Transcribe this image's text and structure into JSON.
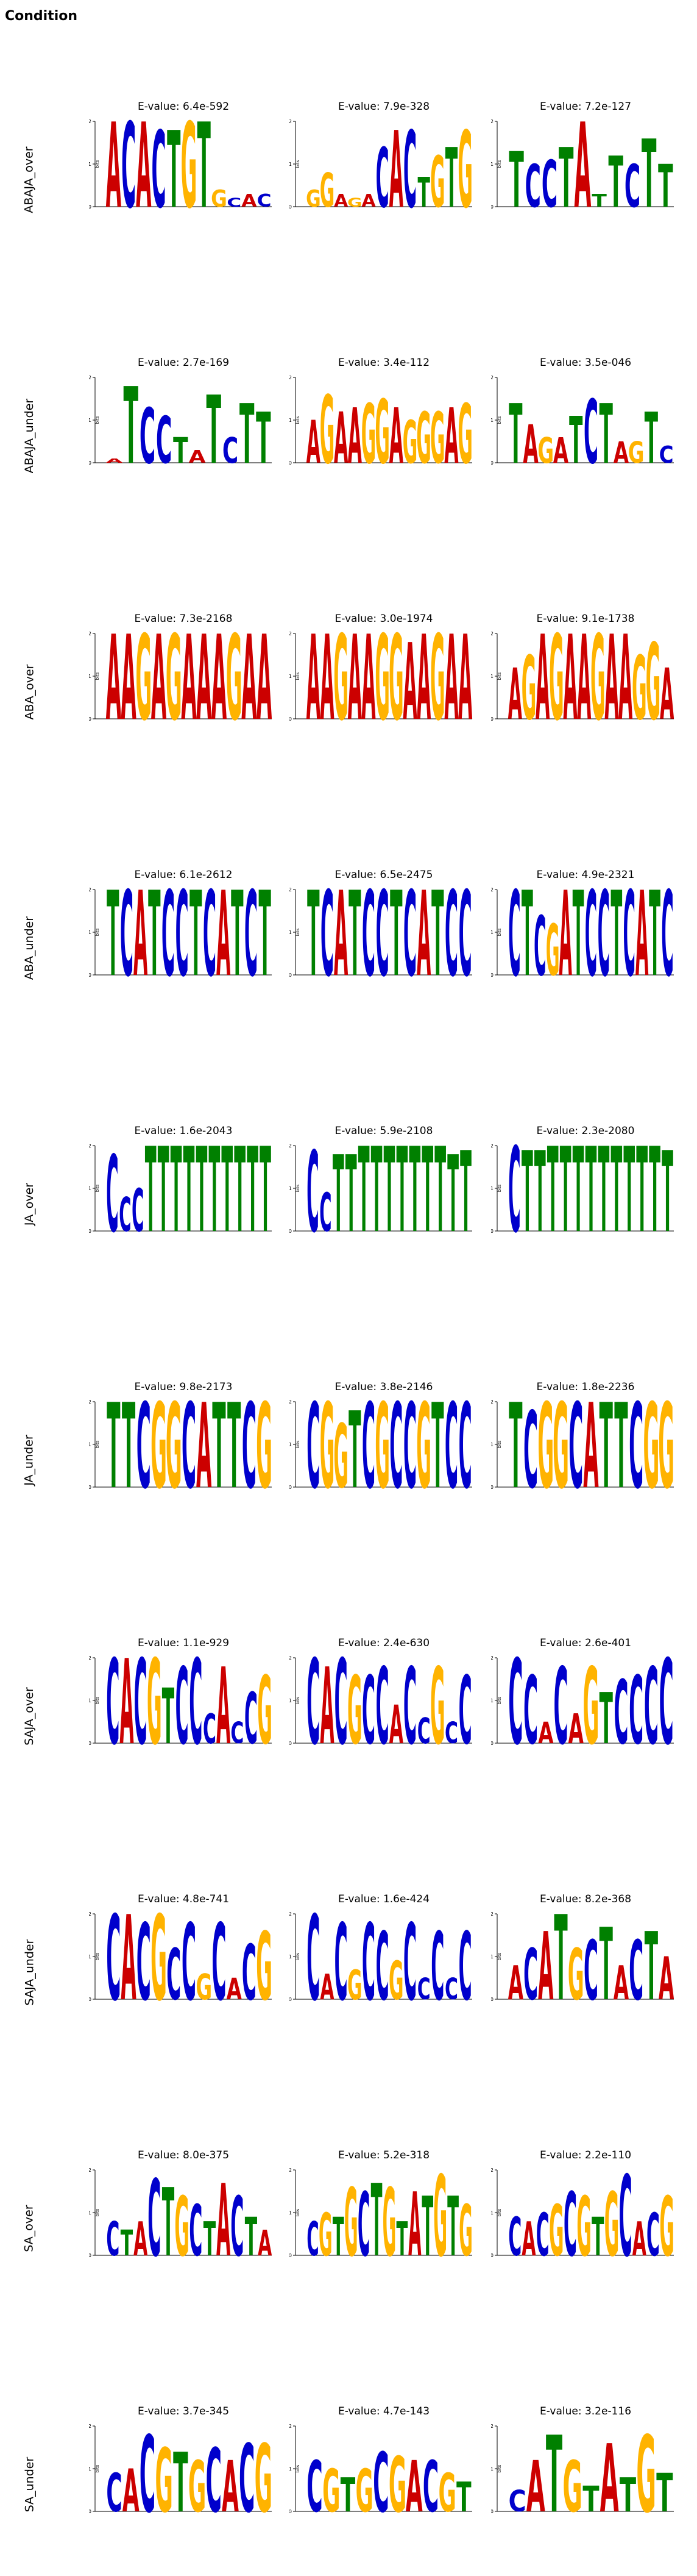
{
  "title": "Condition",
  "axis_label": "bits",
  "colors": {
    "A": "#cc0000",
    "C": "#0000cc",
    "G": "#ffb300",
    "T": "#008000"
  },
  "rows": [
    {
      "label": "ABAJA_over",
      "panels": [
        {
          "evalue": "E-value: 6.4e-592",
          "consensus": "ACACTGTGCAC",
          "heights": [
            2,
            2,
            2,
            1.8,
            1.8,
            2,
            2,
            0.4,
            0.2,
            0.3,
            0.3
          ]
        },
        {
          "evalue": "E-value: 7.9e-328",
          "consensus": "GGAGACACTGTG",
          "heights": [
            0.4,
            0.8,
            0.3,
            0.2,
            0.3,
            1.4,
            1.8,
            1.8,
            0.7,
            1.2,
            1.4,
            1.8
          ]
        },
        {
          "evalue": "E-value: 7.2e-127",
          "consensus": "TCCTATTCTT",
          "heights": [
            1.3,
            1.0,
            1.1,
            1.4,
            2.0,
            0.3,
            1.2,
            1.0,
            1.6,
            1.0
          ]
        }
      ]
    },
    {
      "label": "ABAJA_under",
      "panels": [
        {
          "evalue": "E-value: 2.7e-169",
          "consensus": "ATCCTATCTT",
          "heights": [
            0.1,
            1.8,
            1.3,
            1.1,
            0.6,
            0.3,
            1.6,
            0.6,
            1.4,
            1.2
          ]
        },
        {
          "evalue": "E-value: 3.4e-112",
          "consensus": "AGAAGGAGGGAG",
          "heights": [
            1.0,
            1.6,
            1.2,
            1.3,
            1.4,
            1.5,
            1.3,
            1.0,
            1.2,
            1.2,
            1.3,
            1.4
          ]
        },
        {
          "evalue": "E-value: 3.5e-046",
          "consensus": "TAGATCTAGTC",
          "heights": [
            1.4,
            0.9,
            0.6,
            0.6,
            1.1,
            1.5,
            1.4,
            0.5,
            0.5,
            1.2,
            0.4
          ]
        }
      ]
    },
    {
      "label": "ABA_over",
      "panels": [
        {
          "evalue": "E-value: 7.3e-2168",
          "consensus": "AAGAGAAAGAA",
          "heights": [
            2,
            2,
            2,
            2,
            2,
            2,
            2,
            2,
            2,
            2,
            2
          ]
        },
        {
          "evalue": "E-value: 3.0e-1974",
          "consensus": "AAGAAGGAAGAA",
          "heights": [
            2,
            2,
            2,
            2,
            2,
            2,
            2,
            1.8,
            2,
            2,
            2,
            2
          ]
        },
        {
          "evalue": "E-value: 9.1e-1738",
          "consensus": "AGAGAAGAAGGA",
          "heights": [
            1.2,
            1.5,
            2,
            2,
            2,
            2,
            2,
            2,
            2,
            1.5,
            1.8,
            1.2
          ]
        }
      ]
    },
    {
      "label": "ABA_under",
      "panels": [
        {
          "evalue": "E-value: 6.1e-2612",
          "consensus": "TCATCCTCATCT",
          "heights": [
            2,
            2,
            2,
            2,
            2,
            2,
            2,
            2,
            2,
            2,
            2,
            2
          ]
        },
        {
          "evalue": "E-value: 6.5e-2475",
          "consensus": "TCATCCTCATCC",
          "heights": [
            2,
            2,
            2,
            2,
            2,
            2,
            2,
            2,
            2,
            2,
            2,
            2
          ]
        },
        {
          "evalue": "E-value: 4.9e-2321",
          "consensus": "CTCGATCCTCATC",
          "heights": [
            2,
            2,
            1.4,
            1.2,
            2,
            2,
            2,
            2,
            2,
            2,
            2,
            2,
            2
          ]
        }
      ]
    },
    {
      "label": "JA_over",
      "panels": [
        {
          "evalue": "E-value: 1.6e-2043",
          "consensus": "CCCTTTTTTTTTT",
          "heights": [
            1.8,
            0.8,
            1.0,
            2,
            2,
            2,
            2,
            2,
            2,
            2,
            2,
            2,
            2
          ]
        },
        {
          "evalue": "E-value: 5.9e-2108",
          "consensus": "CCTTTTTTTTTTT",
          "heights": [
            1.9,
            0.9,
            1.8,
            1.8,
            2,
            2,
            2,
            2,
            2,
            2,
            2,
            1.8,
            1.9
          ]
        },
        {
          "evalue": "E-value: 2.3e-2080",
          "consensus": "CTTTTTTTTTTTT",
          "heights": [
            2,
            1.9,
            1.9,
            2,
            2,
            2,
            2,
            2,
            2,
            2,
            2,
            2,
            1.9
          ]
        }
      ]
    },
    {
      "label": "JA_under",
      "panels": [
        {
          "evalue": "E-value: 9.8e-2173",
          "consensus": "TTCGGCATTCG",
          "heights": [
            2,
            2,
            2,
            2,
            2,
            2,
            2,
            2,
            2,
            2,
            2
          ]
        },
        {
          "evalue": "E-value: 3.8e-2146",
          "consensus": "CGGTCGCCGTCC",
          "heights": [
            2,
            2,
            1.5,
            1.8,
            2,
            2,
            2,
            2,
            2,
            2,
            2,
            2
          ]
        },
        {
          "evalue": "E-value: 1.8e-2236",
          "consensus": "TCGGCATTCGG",
          "heights": [
            2,
            1.8,
            2,
            2,
            2,
            2,
            2,
            2,
            2,
            2,
            2
          ]
        }
      ]
    },
    {
      "label": "SAJA_over",
      "panels": [
        {
          "evalue": "E-value: 1.1e-929",
          "consensus": "CACGTCCCACCG",
          "heights": [
            2,
            2,
            2,
            2,
            1.3,
            1.8,
            2,
            0.7,
            1.8,
            0.5,
            1.2,
            1.6
          ]
        },
        {
          "evalue": "E-value: 2.4e-630",
          "consensus": "CACGCCACCGCC",
          "heights": [
            2,
            1.8,
            2,
            1.6,
            1.6,
            1.8,
            0.9,
            1.8,
            0.6,
            1.8,
            0.5,
            1.6
          ]
        },
        {
          "evalue": "E-value: 2.6e-401",
          "consensus": "CCACAGTCCCC",
          "heights": [
            2,
            1.6,
            0.5,
            1.8,
            0.7,
            1.8,
            1.2,
            1.5,
            1.6,
            1.8,
            2
          ]
        }
      ]
    },
    {
      "label": "SAJA_under",
      "panels": [
        {
          "evalue": "E-value: 4.8e-741",
          "consensus": "CACGCCGCACG",
          "heights": [
            2,
            2,
            1.8,
            2,
            1.2,
            1.8,
            0.6,
            1.8,
            0.5,
            1.3,
            1.6
          ]
        },
        {
          "evalue": "E-value: 1.6e-424",
          "consensus": "CACGCCGCCCCC",
          "heights": [
            2,
            0.6,
            1.8,
            0.7,
            1.8,
            1.6,
            0.9,
            1.8,
            0.5,
            1.6,
            0.5,
            1.6
          ]
        },
        {
          "evalue": "E-value: 8.2e-368",
          "consensus": "ACATGCTACTA",
          "heights": [
            0.8,
            1.2,
            1.6,
            2.0,
            1.2,
            1.4,
            1.7,
            0.8,
            1.4,
            1.6,
            1.0
          ]
        }
      ]
    },
    {
      "label": "SA_over",
      "panels": [
        {
          "evalue": "E-value: 8.0e-375",
          "consensus": "CTACTGCTACTA",
          "heights": [
            0.8,
            0.6,
            0.8,
            1.8,
            1.6,
            1.4,
            1.2,
            0.8,
            1.7,
            1.4,
            0.9,
            0.6
          ]
        },
        {
          "evalue": "E-value: 5.2e-318",
          "consensus": "CGTGCTGTATGTG",
          "heights": [
            0.8,
            1.0,
            0.9,
            1.6,
            1.5,
            1.7,
            1.6,
            0.8,
            1.5,
            1.4,
            1.9,
            1.4,
            1.2
          ]
        },
        {
          "evalue": "E-value: 2.2e-110",
          "consensus": "CACGCGTGCACG",
          "heights": [
            0.9,
            0.8,
            1.0,
            1.2,
            1.5,
            1.4,
            0.9,
            1.5,
            1.9,
            0.8,
            1.0,
            1.4
          ]
        }
      ]
    },
    {
      "label": "SA_under",
      "panels": [
        {
          "evalue": "E-value: 3.7e-345",
          "consensus": "CACGTGCACG",
          "heights": [
            0.9,
            1.0,
            1.8,
            1.5,
            1.4,
            1.2,
            1.5,
            1.2,
            1.6,
            1.6
          ]
        },
        {
          "evalue": "E-value: 4.7e-143",
          "consensus": "CGTGCGACGT",
          "heights": [
            1.2,
            1.0,
            0.8,
            1.0,
            1.4,
            1.3,
            1.2,
            1.2,
            0.9,
            0.7
          ]
        },
        {
          "evalue": "E-value: 3.2e-116",
          "consensus": "CATGTATGT",
          "heights": [
            0.5,
            1.2,
            1.8,
            1.2,
            0.6,
            1.6,
            0.8,
            1.8,
            0.9
          ]
        }
      ]
    }
  ]
}
